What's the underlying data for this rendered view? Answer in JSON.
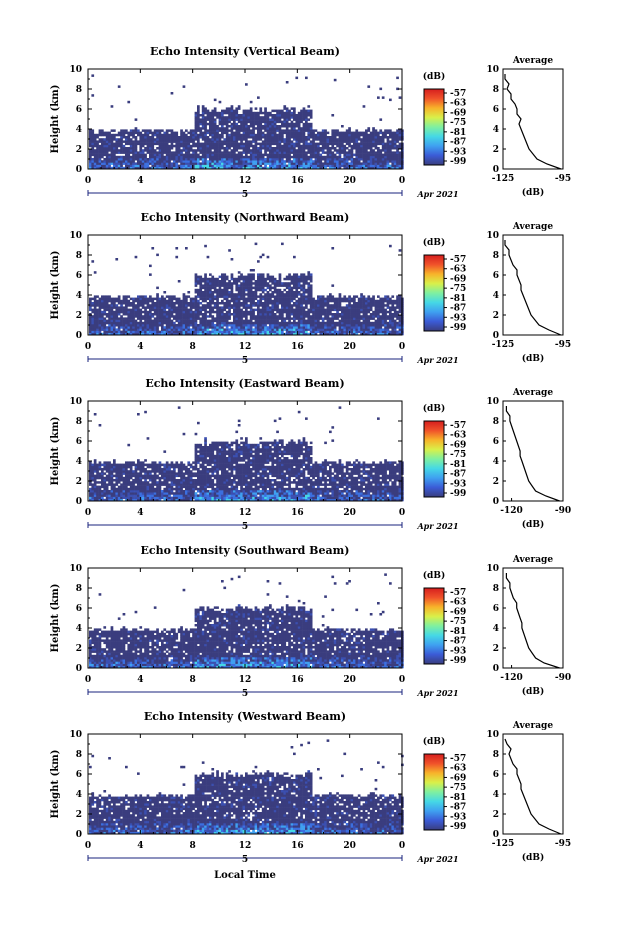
{
  "figure": {
    "xlabel": "Local Time",
    "date_label": "Apr 2021",
    "date_marker": "5",
    "colorbar_unit": "(dB)",
    "colorbar_ticks": [
      "-57",
      "-63",
      "-69",
      "-75",
      "-81",
      "-87",
      "-93",
      "-99"
    ],
    "colorbar_colors": [
      "#3a3d7e",
      "#3b5bd6",
      "#3fa0f0",
      "#45d8e6",
      "#7ff0a0",
      "#d9f04a",
      "#f7b32a",
      "#f0522a",
      "#d61e1e"
    ]
  },
  "chart_data": [
    {
      "type": "heatmap",
      "title": "Echo Intensity (Vertical Beam)",
      "xlabel": "Local Time",
      "ylabel": "Height (km)",
      "xlim": [
        0,
        24
      ],
      "ylim": [
        0,
        10
      ],
      "xticks": [
        "0",
        "4",
        "8",
        "12",
        "16",
        "20",
        "0"
      ],
      "yticks": [
        "0",
        "2",
        "4",
        "6",
        "8",
        "10"
      ],
      "profile": {
        "title": "Average",
        "xlabel": "(dB)",
        "xticks": [
          "-125",
          "-95"
        ],
        "xlim": [
          -125,
          -95
        ],
        "heights": [
          0,
          0.5,
          1,
          1.5,
          2,
          2.5,
          3,
          3.5,
          4,
          4.5,
          5,
          5.5,
          6,
          6.5,
          7,
          7.5,
          8,
          8.5,
          9,
          9.5
        ],
        "values": [
          -96,
          -103,
          -108,
          -110,
          -112,
          -113,
          -114,
          -115,
          -116,
          -117,
          -116,
          -118,
          -118,
          -119,
          -121,
          -121,
          -123,
          -122,
          -124,
          -124
        ]
      }
    },
    {
      "type": "heatmap",
      "title": "Echo Intensity (Northward Beam)",
      "xlabel": "Local Time",
      "ylabel": "Height (km)",
      "xlim": [
        0,
        24
      ],
      "ylim": [
        0,
        10
      ],
      "xticks": [
        "0",
        "4",
        "8",
        "12",
        "16",
        "20",
        "0"
      ],
      "yticks": [
        "0",
        "2",
        "4",
        "6",
        "8",
        "10"
      ],
      "profile": {
        "title": "Average",
        "xlabel": "(dB)",
        "xticks": [
          "-125",
          "-95"
        ],
        "xlim": [
          -125,
          -95
        ],
        "heights": [
          0,
          0.5,
          1,
          1.5,
          2,
          2.5,
          3,
          3.5,
          4,
          4.5,
          5,
          5.5,
          6,
          6.5,
          7,
          7.5,
          8,
          8.5,
          9,
          9.5
        ],
        "values": [
          -96,
          -102,
          -107,
          -109,
          -111,
          -112,
          -113,
          -114,
          -115,
          -116,
          -116,
          -117,
          -118,
          -118,
          -120,
          -121,
          -122,
          -122,
          -124,
          -124
        ]
      }
    },
    {
      "type": "heatmap",
      "title": "Echo Intensity (Eastward Beam)",
      "xlabel": "Local Time",
      "ylabel": "Height (km)",
      "xlim": [
        0,
        24
      ],
      "ylim": [
        0,
        10
      ],
      "xticks": [
        "0",
        "4",
        "8",
        "12",
        "16",
        "20",
        "0"
      ],
      "yticks": [
        "0",
        "2",
        "4",
        "6",
        "8",
        "10"
      ],
      "profile": {
        "title": "Average",
        "xlabel": "(dB)",
        "xticks": [
          "-120",
          "-90"
        ],
        "xlim": [
          -125,
          -90
        ],
        "heights": [
          0,
          0.5,
          1,
          1.5,
          2,
          2.5,
          3,
          3.5,
          4,
          4.5,
          5,
          5.5,
          6,
          6.5,
          7,
          7.5,
          8,
          8.5,
          9,
          9.5
        ],
        "values": [
          -92,
          -100,
          -106,
          -108,
          -110,
          -111,
          -112,
          -113,
          -114,
          -115,
          -115,
          -116,
          -117,
          -118,
          -119,
          -120,
          -121,
          -121,
          -123,
          -123
        ]
      }
    },
    {
      "type": "heatmap",
      "title": "Echo Intensity (Southward Beam)",
      "xlabel": "Local Time",
      "ylabel": "Height (km)",
      "xlim": [
        0,
        24
      ],
      "ylim": [
        0,
        10
      ],
      "xticks": [
        "0",
        "4",
        "8",
        "12",
        "16",
        "20",
        "0"
      ],
      "yticks": [
        "0",
        "2",
        "4",
        "6",
        "8",
        "10"
      ],
      "profile": {
        "title": "Average",
        "xlabel": "(dB)",
        "xticks": [
          "-120",
          "-90"
        ],
        "xlim": [
          -125,
          -90
        ],
        "heights": [
          0,
          0.5,
          1,
          1.5,
          2,
          2.5,
          3,
          3.5,
          4,
          4.5,
          5,
          5.5,
          6,
          6.5,
          7,
          7.5,
          8,
          8.5,
          9,
          9.5
        ],
        "values": [
          -92,
          -101,
          -106,
          -108,
          -110,
          -111,
          -112,
          -113,
          -114,
          -114,
          -115,
          -116,
          -117,
          -117,
          -119,
          -120,
          -121,
          -121,
          -123,
          -123
        ]
      }
    },
    {
      "type": "heatmap",
      "title": "Echo Intensity (Westward Beam)",
      "xlabel": "Local Time",
      "ylabel": "Height (km)",
      "xlim": [
        0,
        24
      ],
      "ylim": [
        0,
        10
      ],
      "xticks": [
        "0",
        "4",
        "8",
        "12",
        "16",
        "20",
        "0"
      ],
      "yticks": [
        "0",
        "2",
        "4",
        "6",
        "8",
        "10"
      ],
      "profile": {
        "title": "Average",
        "xlabel": "(dB)",
        "xticks": [
          "-125",
          "-95"
        ],
        "xlim": [
          -125,
          -95
        ],
        "heights": [
          0,
          0.5,
          1,
          1.5,
          2,
          2.5,
          3,
          3.5,
          4,
          4.5,
          5,
          5.5,
          6,
          6.5,
          7,
          7.5,
          8,
          8.5,
          9,
          9.5
        ],
        "values": [
          -96,
          -102,
          -107,
          -109,
          -111,
          -112,
          -113,
          -114,
          -115,
          -116,
          -116,
          -117,
          -118,
          -118,
          -120,
          -121,
          -122,
          -121,
          -123,
          -124
        ]
      }
    }
  ]
}
